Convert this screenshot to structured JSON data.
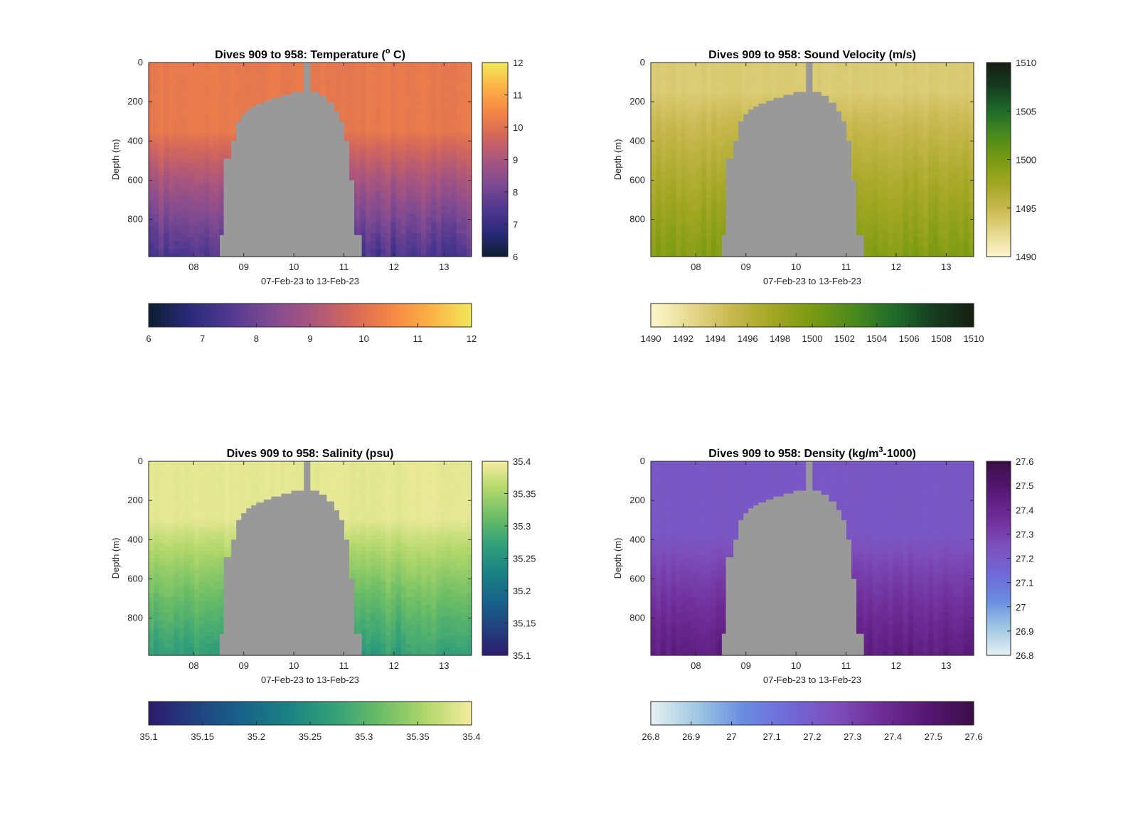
{
  "chart_data": [
    {
      "type": "heatmap",
      "title": "Dives 909 to 958: Temperature (",
      "title_unit": "o",
      "title_tail": " C)",
      "xlabel": "07-Feb-23 to 13-Feb-23",
      "ylabel": "Depth (m)",
      "xticks": [
        "08",
        "09",
        "10",
        "11",
        "12",
        "13"
      ],
      "yticks": [
        "0",
        "200",
        "400",
        "600",
        "800"
      ],
      "ylim": [
        0,
        990
      ],
      "xlim_days": [
        7.1,
        13.55
      ],
      "colorbar_ticks": [
        "6",
        "7",
        "8",
        "9",
        "10",
        "11",
        "12"
      ],
      "colorbar_range": [
        6,
        12
      ],
      "colormap": [
        "#0b1d2f",
        "#2a2a7a",
        "#503890",
        "#7e4a92",
        "#a8557f",
        "#d4675a",
        "#f58645",
        "#fbb245",
        "#f2e85a"
      ],
      "surface_value": 10.2,
      "deep_value": 7.4,
      "deep_fade_start": 350,
      "hdr_cbar_ticks": [
        "6",
        "7",
        "8",
        "9",
        "10",
        "11",
        "12"
      ],
      "mask_color": "#999999",
      "grid": false
    },
    {
      "type": "heatmap",
      "title": "Dives 909 to 958: Sound Velocity (m/s)",
      "xlabel": "07-Feb-23 to 13-Feb-23",
      "ylabel": "Depth (m)",
      "xticks": [
        "08",
        "09",
        "10",
        "11",
        "12",
        "13"
      ],
      "yticks": [
        "0",
        "200",
        "400",
        "600",
        "800"
      ],
      "ylim": [
        0,
        990
      ],
      "xlim_days": [
        7.1,
        13.55
      ],
      "colorbar_ticks": [
        "1490",
        "1495",
        "1500",
        "1505",
        "1510"
      ],
      "colorbar_range": [
        1490,
        1510
      ],
      "colormap": [
        "#fdf7cf",
        "#e6d88c",
        "#c8b84f",
        "#a3a723",
        "#7a9a12",
        "#4c8a1c",
        "#1f6c2a",
        "#163e20",
        "#151e12"
      ],
      "surface_value": 1493.5,
      "deep_value": 1499.5,
      "deep_fade_start": 150,
      "hdr_cbar_ticks": [
        "1490",
        "1492",
        "1494",
        "1496",
        "1498",
        "1500",
        "1502",
        "1504",
        "1506",
        "1508",
        "1510"
      ],
      "mask_color": "#999999",
      "grid": false
    },
    {
      "type": "heatmap",
      "title": "Dives 909 to 958: Salinity (psu)",
      "xlabel": "07-Feb-23 to 13-Feb-23",
      "ylabel": "Depth (m)",
      "xticks": [
        "08",
        "09",
        "10",
        "11",
        "12",
        "13"
      ],
      "yticks": [
        "0",
        "200",
        "400",
        "600",
        "800"
      ],
      "ylim": [
        0,
        990
      ],
      "xlim_days": [
        7.1,
        13.55
      ],
      "colorbar_ticks": [
        "35.1",
        "35.15",
        "35.2",
        "35.25",
        "35.3",
        "35.35",
        "35.4"
      ],
      "colorbar_range": [
        35.1,
        35.4
      ],
      "colormap": [
        "#2c1a6b",
        "#22417f",
        "#17628a",
        "#1b8183",
        "#33a079",
        "#69bc66",
        "#b0d76a",
        "#f5eca0"
      ],
      "surface_value": 35.39,
      "deep_value": 35.27,
      "deep_fade_start": 300,
      "hdr_cbar_ticks": [
        "35.1",
        "35.15",
        "35.2",
        "35.25",
        "35.3",
        "35.35",
        "35.4"
      ],
      "mask_color": "#999999",
      "grid": false
    },
    {
      "type": "heatmap",
      "title": "Dives 909 to 958: Density (kg/m",
      "title_unit": "3",
      "title_tail": "-1000)",
      "xlabel": "07-Feb-23 to 13-Feb-23",
      "ylabel": "Depth (m)",
      "xticks": [
        "08",
        "09",
        "10",
        "11",
        "12",
        "13"
      ],
      "yticks": [
        "0",
        "200",
        "400",
        "600",
        "800"
      ],
      "ylim": [
        0,
        990
      ],
      "xlim_days": [
        7.1,
        13.55
      ],
      "colorbar_ticks": [
        "26.8",
        "26.9",
        "27",
        "27.1",
        "27.2",
        "27.3",
        "27.4",
        "27.5",
        "27.6"
      ],
      "colorbar_range": [
        26.8,
        27.6
      ],
      "colormap": [
        "#e8f1f2",
        "#9fc8e3",
        "#6a8ce0",
        "#7168d8",
        "#7d4fbb",
        "#6f2c97",
        "#561774",
        "#3b0e46"
      ],
      "surface_value": 27.22,
      "deep_value": 27.45,
      "deep_fade_start": 380,
      "hdr_cbar_ticks": [
        "26.8",
        "26.9",
        "27",
        "27.1",
        "27.2",
        "27.3",
        "27.4",
        "27.5",
        "27.6"
      ],
      "mask_color": "#999999",
      "grid": false
    }
  ]
}
